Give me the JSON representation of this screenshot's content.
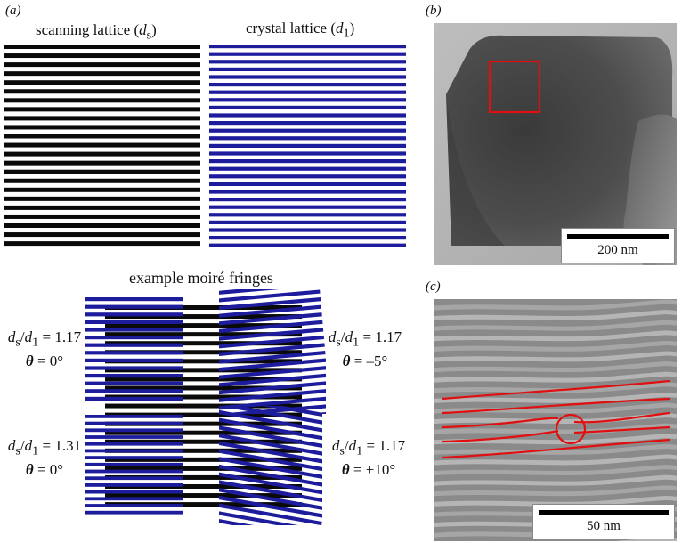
{
  "panel_a": {
    "label": "(a)",
    "scanning_title_pre": "scanning lattice (",
    "scanning_title_var": "d",
    "scanning_title_sub": "s",
    "scanning_title_post": ")",
    "crystal_title_pre": "crystal lattice (",
    "crystal_title_var": "d",
    "crystal_title_sub": "1",
    "crystal_title_post": ")",
    "example_title": "example moiré fringes",
    "colors": {
      "scan": "#0a0a0a",
      "crystal": "#1c1c9c"
    },
    "examples": [
      {
        "ratio_label": "d",
        "ratio_sub_s": "s",
        "ratio_slash": "/",
        "ratio_var": "d",
        "ratio_sub_1": "1",
        "ratio_value": " = 1.17",
        "theta_label": "θ",
        "theta_value": " = 0°"
      },
      {
        "ratio_label": "d",
        "ratio_sub_s": "s",
        "ratio_slash": "/",
        "ratio_var": "d",
        "ratio_sub_1": "1",
        "ratio_value": " = 1.17",
        "theta_label": "θ",
        "theta_value": " = –5°"
      },
      {
        "ratio_label": "d",
        "ratio_sub_s": "s",
        "ratio_slash": "/",
        "ratio_var": "d",
        "ratio_sub_1": "1",
        "ratio_value": " = 1.31",
        "theta_label": "θ",
        "theta_value": " = 0°"
      },
      {
        "ratio_label": "d",
        "ratio_sub_s": "s",
        "ratio_slash": "/",
        "ratio_var": "d",
        "ratio_sub_1": "1",
        "ratio_value": " = 1.17",
        "theta_label": "θ",
        "theta_value": " = +10°"
      }
    ]
  },
  "panel_b": {
    "label": "(b)",
    "scalebar": "200 nm",
    "highlight_color": "#e01010"
  },
  "panel_c": {
    "label": "(c)",
    "scalebar": "50 nm",
    "trace_color": "#e01010"
  }
}
